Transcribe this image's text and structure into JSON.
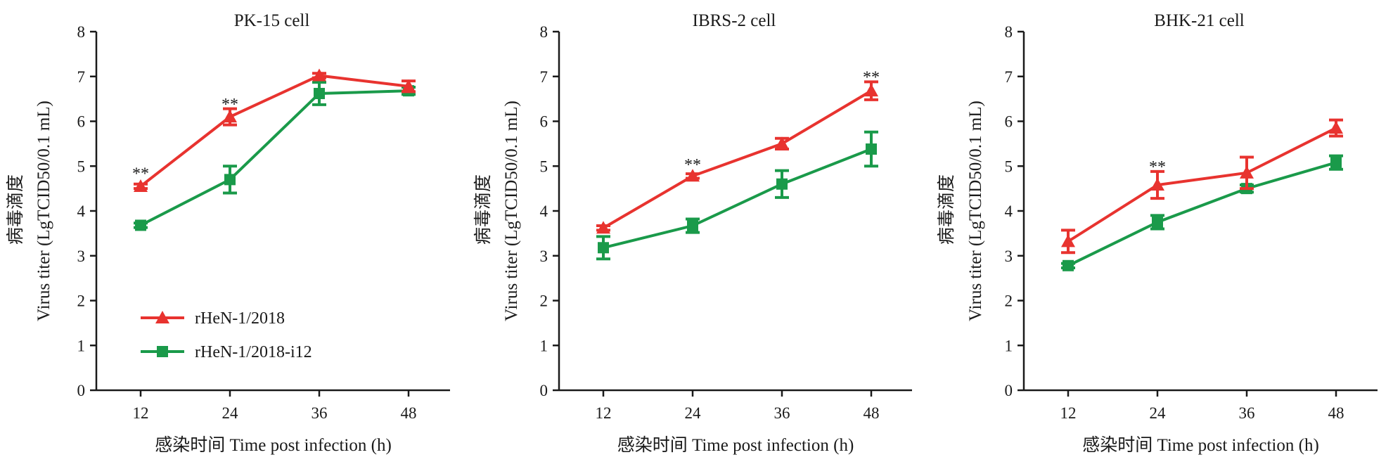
{
  "chart_data": [
    {
      "type": "line",
      "title": "PK-15 cell",
      "xlabel": "感染时间 Time post infection (h)",
      "ylabel_zh": "病毒滴度",
      "ylabel_en": "Virus titer (LgTCID50/0.1 mL)",
      "x": [
        12,
        24,
        36,
        48
      ],
      "ylim": [
        0,
        8
      ],
      "yticks": [
        0,
        1,
        2,
        3,
        4,
        5,
        6,
        7,
        8
      ],
      "series": [
        {
          "name": "rHeN-1/2018",
          "color": "#e8332f",
          "marker": "triangle",
          "values": [
            4.55,
            6.1,
            7.02,
            6.78
          ],
          "errors": [
            0.05,
            0.18,
            0.05,
            0.12
          ]
        },
        {
          "name": "rHeN-1/2018-i12",
          "color": "#1a9a4a",
          "marker": "square",
          "values": [
            3.68,
            4.7,
            6.62,
            6.68
          ],
          "errors": [
            0.05,
            0.3,
            0.25,
            0.08
          ]
        }
      ],
      "annotations": [
        {
          "x": 12,
          "y": 4.9,
          "text": "**"
        },
        {
          "x": 24,
          "y": 6.45,
          "text": "**"
        }
      ],
      "legend": "bottom-left",
      "show_legend": true
    },
    {
      "type": "line",
      "title": "IBRS-2 cell",
      "xlabel": "感染时间 Time post infection (h)",
      "ylabel_zh": "病毒滴度",
      "ylabel_en": "Virus titer (LgTCID50/0.1 mL)",
      "x": [
        12,
        24,
        36,
        48
      ],
      "ylim": [
        0,
        8
      ],
      "yticks": [
        0,
        1,
        2,
        3,
        4,
        5,
        6,
        7,
        8
      ],
      "series": [
        {
          "name": "rHeN-1/2018",
          "color": "#e8332f",
          "marker": "triangle",
          "values": [
            3.62,
            4.78,
            5.5,
            6.68
          ],
          "errors": [
            0.05,
            0.05,
            0.12,
            0.2
          ]
        },
        {
          "name": "rHeN-1/2018-i12",
          "color": "#1a9a4a",
          "marker": "square",
          "values": [
            3.18,
            3.67,
            4.6,
            5.38
          ],
          "errors": [
            0.25,
            0.15,
            0.3,
            0.38
          ]
        }
      ],
      "annotations": [
        {
          "x": 24,
          "y": 5.1,
          "text": "**"
        },
        {
          "x": 48,
          "y": 7.05,
          "text": "**"
        }
      ],
      "legend": "none",
      "show_legend": false
    },
    {
      "type": "line",
      "title": "BHK-21 cell",
      "xlabel": "感染时间 Time post infection (h)",
      "ylabel_zh": "病毒滴度",
      "ylabel_en": "Virus titer (LgTCID50/0.1 mL)",
      "x": [
        12,
        24,
        36,
        48
      ],
      "ylim": [
        0,
        8
      ],
      "yticks": [
        0,
        1,
        2,
        3,
        4,
        5,
        6,
        7,
        8
      ],
      "series": [
        {
          "name": "rHeN-1/2018",
          "color": "#e8332f",
          "marker": "triangle",
          "values": [
            3.32,
            4.58,
            4.85,
            5.85
          ],
          "errors": [
            0.25,
            0.3,
            0.35,
            0.18
          ]
        },
        {
          "name": "rHeN-1/2018-i12",
          "color": "#1a9a4a",
          "marker": "square",
          "values": [
            2.78,
            3.75,
            4.5,
            5.08
          ],
          "errors": [
            0.05,
            0.15,
            0.08,
            0.15
          ]
        }
      ],
      "annotations": [
        {
          "x": 24,
          "y": 5.05,
          "text": "**"
        }
      ],
      "legend": "none",
      "show_legend": false
    }
  ]
}
